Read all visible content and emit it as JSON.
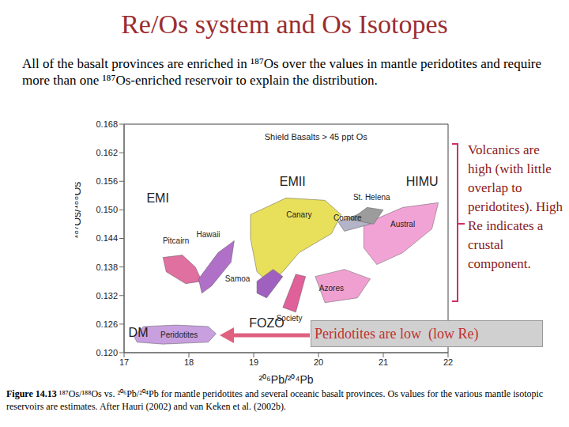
{
  "slide": {
    "title": "Re/Os system and Os Isotopes",
    "intro": "All of the basalt provinces are enriched in ¹⁸⁷Os over the values in mantle peridotites and require more than one ¹⁸⁷Os-enriched reservoir to explain the distribution.",
    "side_note": "Volcanics are high (with little overlap to peridotites). High Re indicates a crustal component.",
    "box_note": "Peridotites are low  (low Re)",
    "caption_label": "Figure 14.13",
    "caption_text": "¹⁸⁷Os/¹⁸⁸Os vs. ²⁰⁶Pb/²⁰⁴Pb for mantle peridotites and several oceanic basalt provinces. Os values for the various mantle isotopic reservoirs are estimates. After Hauri (2002) and van Keken et al. (2002b)."
  },
  "chart_data": {
    "type": "area",
    "x_label": "²⁰⁶Pb/²⁰⁴Pb",
    "y_label": "¹⁸⁷Os/¹⁸⁸Os",
    "xlim": [
      17,
      22
    ],
    "xticks": [
      17,
      18,
      19,
      20,
      21,
      22
    ],
    "ylim": [
      0.12,
      0.168
    ],
    "yticks": [
      {
        "value": 0.12,
        "label": "0.120"
      },
      0.126,
      0.132,
      0.138,
      0.144,
      {
        "value": 0.15,
        "label": "0.150"
      },
      0.156,
      0.162,
      0.168
    ],
    "grid": false,
    "note": {
      "text": "Shield Basalts > 45 ppt Os",
      "x": 19.96,
      "y": 0.1653
    },
    "annotations": [
      {
        "text": "EMI",
        "x": 17.52,
        "y": 0.1525
      },
      {
        "text": "EMII",
        "x": 19.6,
        "y": 0.1559
      },
      {
        "text": "HIMU",
        "x": 21.6,
        "y": 0.1559
      },
      {
        "text": "DM",
        "x": 17.22,
        "y": 0.1243
      },
      {
        "text": "FOZO",
        "x": 19.2,
        "y": 0.1262
      }
    ],
    "series": [
      {
        "name": "Canary",
        "color": "#e8df5a",
        "label": [
          19.7,
          0.149
        ],
        "x": [
          18.95,
          19.5,
          20.1,
          20.35,
          20.2,
          19.7,
          19.45,
          19.25,
          19.05,
          18.95
        ],
        "y": [
          0.149,
          0.1525,
          0.152,
          0.149,
          0.145,
          0.141,
          0.137,
          0.1345,
          0.137,
          0.144
        ]
      },
      {
        "name": "Austral",
        "color": "#f2a3d6",
        "label": [
          21.3,
          0.147
        ],
        "x": [
          20.7,
          21.3,
          21.85,
          21.75,
          21.3,
          20.9,
          20.7
        ],
        "y": [
          0.147,
          0.1505,
          0.1515,
          0.146,
          0.141,
          0.1385,
          0.142
        ]
      },
      {
        "name": "Comore",
        "color": "#b4b4c8",
        "label": [
          20.45,
          0.1484
        ],
        "x": [
          20.3,
          20.7,
          20.8,
          20.4
        ],
        "y": [
          0.1475,
          0.1495,
          0.147,
          0.1455
        ]
      },
      {
        "name": "St. Helena",
        "color": "#9c9c9c",
        "label": [
          20.82,
          0.1526
        ],
        "x": [
          20.5,
          20.75,
          21.0,
          20.85
        ],
        "y": [
          0.148,
          0.1505,
          0.15,
          0.147
        ]
      },
      {
        "name": "Pitcairn",
        "color": "#e070a0",
        "label": [
          17.8,
          0.1435
        ],
        "x": [
          17.6,
          17.9,
          18.1,
          18.2,
          17.95,
          17.65
        ],
        "y": [
          0.14,
          0.1405,
          0.138,
          0.135,
          0.1345,
          0.137
        ]
      },
      {
        "name": "Hawaii",
        "color": "#b070c8",
        "label": [
          18.3,
          0.1448
        ],
        "x": [
          18.15,
          18.45,
          18.7,
          18.65,
          18.35,
          18.2
        ],
        "y": [
          0.1355,
          0.141,
          0.1435,
          0.139,
          0.134,
          0.1325
        ]
      },
      {
        "name": "Samoa",
        "color": "#a060c0",
        "label": [
          18.75,
          0.1356
        ],
        "x": [
          19.05,
          19.3,
          19.45,
          19.2,
          19.05
        ],
        "y": [
          0.135,
          0.1375,
          0.136,
          0.1315,
          0.1325
        ]
      },
      {
        "name": "Society",
        "color": "#e0609a",
        "label": [
          19.55,
          0.1273
        ],
        "x": [
          19.45,
          19.65,
          19.8,
          19.65
        ],
        "y": [
          0.1295,
          0.1365,
          0.136,
          0.1285
        ]
      },
      {
        "name": "Azores",
        "color": "#f0a0d0",
        "label": [
          20.2,
          0.1335
        ],
        "x": [
          19.95,
          20.4,
          20.8,
          20.6,
          20.1
        ],
        "y": [
          0.136,
          0.1375,
          0.1355,
          0.1315,
          0.1305
        ]
      },
      {
        "name": "Peridotites",
        "color": "#c8a0e0",
        "label": [
          17.85,
          0.1238
        ],
        "x": [
          17.15,
          17.3,
          17.8,
          18.3,
          18.42,
          18.3,
          17.6,
          17.2
        ],
        "y": [
          0.1235,
          0.1255,
          0.1258,
          0.1255,
          0.124,
          0.1222,
          0.1218,
          0.1222
        ]
      }
    ]
  }
}
